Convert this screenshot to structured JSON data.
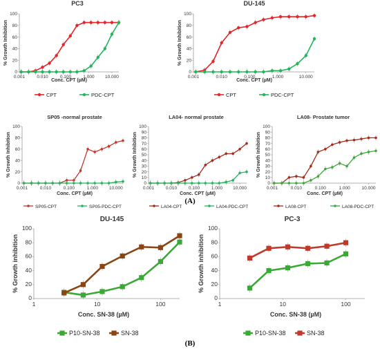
{
  "section_labels": [
    "(A)",
    "(B)"
  ],
  "chart_data": [
    {
      "type": "line",
      "title": "PC3",
      "xlabel": "Conc. CPT (µM)",
      "ylabel": "% Growth Inhibition",
      "x_scale": "log",
      "xlim": [
        0.001,
        20
      ],
      "ylim": [
        0,
        100
      ],
      "xticks": [
        "0.001",
        "0.010",
        "0.100",
        "1.000",
        "10.000"
      ],
      "yticks": [
        "0",
        "20",
        "40",
        "60",
        "80",
        "100"
      ],
      "grid": false,
      "legend_position": "bottom",
      "series": [
        {
          "name": "CPT",
          "color": "#e8232a",
          "x": [
            0.0012,
            0.0025,
            0.005,
            0.01,
            0.02,
            0.04,
            0.08,
            0.16,
            0.31,
            0.63,
            1.25,
            2.5,
            5,
            10,
            20
          ],
          "y": [
            0,
            0,
            2,
            8,
            15,
            28,
            47,
            62,
            80,
            85,
            85,
            85,
            85,
            85,
            85
          ]
        },
        {
          "name": "PDC-CPT",
          "color": "#1fb75a",
          "x": [
            0.0012,
            0.0025,
            0.005,
            0.01,
            0.02,
            0.04,
            0.08,
            0.16,
            0.31,
            0.63,
            1.25,
            2.5,
            5,
            10,
            20
          ],
          "y": [
            0,
            0,
            0,
            0,
            0,
            0,
            0,
            0,
            0,
            2,
            10,
            25,
            40,
            65,
            85
          ]
        }
      ]
    },
    {
      "type": "line",
      "title": "DU-145",
      "xlabel": "Conc. CPT (µM)",
      "ylabel": "% Growth Inhibition",
      "x_scale": "log",
      "xlim": [
        0.001,
        20
      ],
      "ylim": [
        0,
        100
      ],
      "xticks": [
        "0.001",
        "0.010",
        "0.100",
        "1.000",
        "10.000"
      ],
      "yticks": [
        "0",
        "20",
        "40",
        "60",
        "80",
        "100"
      ],
      "grid": false,
      "legend_position": "bottom",
      "series": [
        {
          "name": "CPT",
          "color": "#e8232a",
          "x": [
            0.0012,
            0.0025,
            0.005,
            0.01,
            0.02,
            0.04,
            0.08,
            0.16,
            0.31,
            0.63,
            1.25,
            2.5,
            5,
            10,
            20
          ],
          "y": [
            0,
            3,
            18,
            50,
            68,
            76,
            78,
            85,
            90,
            93,
            95,
            95,
            95,
            95,
            97
          ]
        },
        {
          "name": "PDC-CPT",
          "color": "#1fb75a",
          "x": [
            0.0012,
            0.0025,
            0.005,
            0.01,
            0.02,
            0.04,
            0.08,
            0.16,
            0.31,
            0.63,
            1.25,
            2.5,
            5,
            10,
            20
          ],
          "y": [
            0,
            0,
            0,
            0,
            0,
            0,
            0,
            0,
            0,
            2,
            2,
            5,
            14,
            28,
            57
          ]
        }
      ]
    },
    {
      "type": "line",
      "title": "SP05 -normal prostate",
      "xlabel": "Conc. CPT (µM)",
      "ylabel": "% Growth Inhibition",
      "x_scale": "log",
      "xlim": [
        0.001,
        20
      ],
      "ylim": [
        0,
        100
      ],
      "xticks": [
        "0.001",
        "0.010",
        "0.100",
        "1.000",
        "10.000"
      ],
      "yticks": [
        "0",
        "20",
        "40",
        "60",
        "80",
        "100"
      ],
      "grid": false,
      "legend_position": "bottom",
      "series": [
        {
          "name": "SP05-CPT",
          "color": "#c0392b",
          "x": [
            0.0012,
            0.0025,
            0.005,
            0.01,
            0.02,
            0.04,
            0.08,
            0.16,
            0.31,
            0.63,
            1.25,
            2.5,
            5,
            10,
            20
          ],
          "y": [
            0,
            0,
            0,
            0,
            0,
            0,
            5,
            5,
            22,
            60,
            55,
            60,
            65,
            72,
            75
          ]
        },
        {
          "name": "SP05-PDC-CPT",
          "color": "#1fb75a",
          "x": [
            0.0012,
            0.0025,
            0.005,
            0.01,
            0.02,
            0.04,
            0.08,
            0.16,
            0.31,
            0.63,
            1.25,
            2.5,
            5,
            10,
            20
          ],
          "y": [
            0,
            0,
            0,
            0,
            0,
            0,
            0,
            0,
            0,
            0,
            0,
            0,
            0,
            2,
            3
          ]
        }
      ]
    },
    {
      "type": "line",
      "title": "LA04- normal prostate",
      "xlabel": "Conc. CPT (µM)",
      "ylabel": "% Growth Inhibition",
      "x_scale": "log",
      "xlim": [
        0.001,
        20
      ],
      "ylim": [
        0,
        100
      ],
      "xticks": [
        "0.001",
        "0.010",
        "0.100",
        "1.000",
        "10.000"
      ],
      "yticks": [
        "0",
        "10",
        "20",
        "30",
        "40",
        "50",
        "60",
        "70",
        "80",
        "90",
        "100"
      ],
      "grid": false,
      "legend_position": "bottom",
      "series": [
        {
          "name": "LA04-CPT",
          "color": "#a52a1a",
          "x": [
            0.0012,
            0.0025,
            0.005,
            0.01,
            0.02,
            0.04,
            0.08,
            0.16,
            0.31,
            0.63,
            1.25,
            2.5,
            5,
            10,
            20
          ],
          "y": [
            0,
            0,
            0,
            0,
            1,
            5,
            10,
            15,
            32,
            40,
            46,
            52,
            52,
            60,
            70
          ]
        },
        {
          "name": "LA04-PDC-CPT",
          "color": "#1fb75a",
          "x": [
            0.0012,
            0.0025,
            0.005,
            0.01,
            0.02,
            0.04,
            0.08,
            0.16,
            0.31,
            0.63,
            1.25,
            2.5,
            5,
            10,
            20
          ],
          "y": [
            0,
            0,
            0,
            0,
            0,
            0,
            0,
            0,
            0,
            0,
            0,
            2,
            5,
            18,
            20
          ]
        }
      ]
    },
    {
      "type": "line",
      "title": "LA08- Prostate tumor",
      "xlabel": "Conc. CPT (µM)",
      "ylabel": "% Growth Inhibition",
      "x_scale": "log",
      "xlim": [
        0.001,
        20
      ],
      "ylim": [
        0,
        100
      ],
      "xticks": [
        "0.001",
        "0.010",
        "0.100",
        "1.000",
        "10.000"
      ],
      "yticks": [
        "0",
        "10",
        "20",
        "30",
        "40",
        "50",
        "60",
        "70",
        "80",
        "90",
        "100"
      ],
      "grid": false,
      "legend_position": "bottom",
      "series": [
        {
          "name": "LA08-CPT",
          "color": "#a52a1a",
          "x": [
            0.0012,
            0.0025,
            0.005,
            0.01,
            0.02,
            0.04,
            0.08,
            0.16,
            0.31,
            0.63,
            1.25,
            2.5,
            5,
            10,
            20
          ],
          "y": [
            0,
            0,
            10,
            12,
            10,
            30,
            55,
            60,
            68,
            72,
            75,
            76,
            78,
            80,
            80
          ]
        },
        {
          "name": "LA08-PDC-CPT",
          "color": "#3aa935",
          "x": [
            0.0012,
            0.0025,
            0.005,
            0.01,
            0.02,
            0.04,
            0.08,
            0.16,
            0.31,
            0.63,
            1.25,
            2.5,
            5,
            10,
            20
          ],
          "y": [
            0,
            0,
            0,
            0,
            0,
            5,
            12,
            25,
            28,
            35,
            30,
            45,
            52,
            55,
            57
          ]
        }
      ]
    },
    {
      "type": "line",
      "title": "DU-145",
      "xlabel": "Conc. SN-38 (µM)",
      "ylabel": "% Growth inhibition",
      "x_scale": "log",
      "xlim": [
        1,
        200
      ],
      "ylim": [
        0,
        100
      ],
      "xticks": [
        "1",
        "10",
        "100"
      ],
      "yticks": [
        "0",
        "20",
        "40",
        "60",
        "80",
        "100"
      ],
      "grid": false,
      "legend_position": "bottom",
      "series": [
        {
          "name": "P10-SN-38",
          "color": "#3aa935",
          "x": [
            3,
            6,
            12,
            25,
            50,
            100,
            200
          ],
          "y": [
            9,
            5,
            10,
            17,
            30,
            53,
            81
          ]
        },
        {
          "name": "SN-38",
          "color": "#8b4513",
          "x": [
            3,
            6,
            12,
            25,
            50,
            100,
            200
          ],
          "y": [
            8,
            20,
            46,
            61,
            74,
            73,
            90
          ]
        }
      ]
    },
    {
      "type": "line",
      "title": "PC-3",
      "xlabel": "Conc. SN-38 (µM)",
      "ylabel": "% Growth inhibition",
      "x_scale": "log",
      "xlim": [
        1,
        200
      ],
      "ylim": [
        0,
        100
      ],
      "xticks": [
        "1",
        "10",
        "100"
      ],
      "yticks": [
        "0",
        "20",
        "40",
        "60",
        "80",
        "100"
      ],
      "grid": false,
      "legend_position": "bottom",
      "series": [
        {
          "name": "P10-SN-38",
          "color": "#3aa935",
          "x": [
            3,
            6,
            12,
            25,
            50,
            100
          ],
          "y": [
            15,
            40,
            44,
            50,
            51,
            64
          ]
        },
        {
          "name": "SN-38",
          "color": "#c0392b",
          "x": [
            3,
            6,
            12,
            25,
            50,
            100
          ],
          "y": [
            58,
            72,
            74,
            72,
            75,
            80
          ]
        }
      ]
    }
  ]
}
